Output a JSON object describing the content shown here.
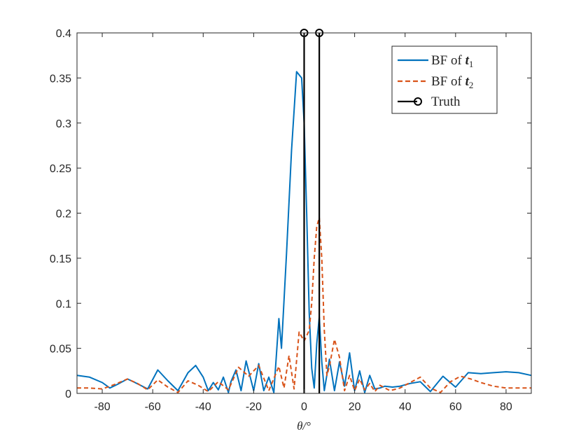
{
  "chart_data": {
    "type": "line",
    "xlabel": "θ/°",
    "xlim": [
      -90,
      90
    ],
    "ylim": [
      0,
      0.4
    ],
    "x_ticks": [
      -80,
      -60,
      -40,
      -20,
      0,
      20,
      40,
      60,
      80
    ],
    "y_ticks": [
      0,
      0.05,
      0.1,
      0.15,
      0.2,
      0.25,
      0.3,
      0.35,
      0.4
    ],
    "x_tick_labels": [
      "-80",
      "-60",
      "-40",
      "-20",
      "0",
      "20",
      "40",
      "60",
      "80"
    ],
    "y_tick_labels": [
      "0",
      "0.05",
      "0.1",
      "0.15",
      "0.2",
      "0.25",
      "0.3",
      "0.35",
      "0.4"
    ],
    "grid": false,
    "legend_position": "top-right",
    "legend": [
      {
        "prefix": "BF of ",
        "symbol": "t",
        "subscript": "1",
        "style": "solid",
        "color": "#0072BD"
      },
      {
        "prefix": "BF of ",
        "symbol": "t",
        "subscript": "2",
        "style": "dashed",
        "color": "#D95319"
      },
      {
        "prefix": "",
        "symbol": "",
        "subscript": "",
        "label": "Truth",
        "style": "stem",
        "color": "#000000"
      }
    ],
    "series": [
      {
        "name": "BF of t1",
        "color": "#0072BD",
        "style": "solid",
        "x": [
          -90,
          -85,
          -80,
          -77,
          -74,
          -70,
          -67,
          -62,
          -58,
          -54,
          -50,
          -46,
          -43,
          -40,
          -38,
          -36,
          -34,
          -32,
          -30,
          -29,
          -27,
          -25,
          -23,
          -20,
          -18,
          -16,
          -14,
          -12,
          -10,
          -9,
          -7,
          -5,
          -3,
          -1,
          0,
          1,
          2,
          3,
          4,
          5,
          6,
          7,
          8,
          10,
          12,
          14,
          16,
          18,
          20,
          22,
          24,
          26,
          28,
          30,
          32,
          35,
          38,
          42,
          46,
          50,
          55,
          60,
          65,
          70,
          75,
          80,
          85,
          90
        ],
        "y": [
          0.02,
          0.018,
          0.012,
          0.006,
          0.01,
          0.016,
          0.012,
          0.005,
          0.026,
          0.014,
          0.003,
          0.023,
          0.031,
          0.018,
          0.003,
          0.012,
          0.004,
          0.018,
          0.001,
          0.013,
          0.026,
          0.003,
          0.036,
          0.003,
          0.033,
          0.003,
          0.018,
          0.001,
          0.083,
          0.05,
          0.155,
          0.27,
          0.357,
          0.35,
          0.3,
          0.2,
          0.09,
          0.028,
          0.006,
          0.055,
          0.085,
          0.035,
          0.003,
          0.038,
          0.003,
          0.035,
          0.008,
          0.045,
          0.003,
          0.025,
          0.001,
          0.02,
          0.005,
          0.006,
          0.008,
          0.007,
          0.008,
          0.011,
          0.013,
          0.002,
          0.019,
          0.007,
          0.023,
          0.022,
          0.023,
          0.024,
          0.023,
          0.02
        ]
      },
      {
        "name": "BF of t2",
        "color": "#D95319",
        "style": "dashed",
        "x": [
          -90,
          -85,
          -80,
          -75,
          -70,
          -66,
          -62,
          -58,
          -54,
          -50,
          -46,
          -42,
          -38,
          -34,
          -30,
          -26,
          -22,
          -18,
          -14,
          -10,
          -8,
          -6,
          -4,
          -2,
          0,
          2,
          3,
          4,
          5,
          6,
          7,
          8,
          9,
          10,
          12,
          14,
          16,
          18,
          20,
          22,
          24,
          26,
          28,
          30,
          34,
          38,
          42,
          46,
          50,
          54,
          58,
          62,
          66,
          70,
          75,
          80,
          85,
          90
        ],
        "y": [
          0.006,
          0.006,
          0.005,
          0.01,
          0.016,
          0.011,
          0.004,
          0.015,
          0.007,
          0.001,
          0.014,
          0.009,
          0.002,
          0.013,
          0.004,
          0.029,
          0.019,
          0.031,
          0.003,
          0.03,
          0.006,
          0.042,
          0.005,
          0.068,
          0.058,
          0.07,
          0.1,
          0.15,
          0.185,
          0.195,
          0.15,
          0.07,
          0.02,
          0.03,
          0.06,
          0.04,
          0.003,
          0.02,
          0.003,
          0.016,
          0.004,
          0.011,
          0.002,
          0.009,
          0.003,
          0.006,
          0.012,
          0.018,
          0.006,
          0.001,
          0.013,
          0.019,
          0.016,
          0.012,
          0.008,
          0.006,
          0.006,
          0.006
        ]
      },
      {
        "name": "Truth",
        "color": "#000000",
        "style": "stem",
        "x": [
          0,
          6
        ],
        "y": [
          0.4,
          0.4
        ]
      }
    ]
  }
}
